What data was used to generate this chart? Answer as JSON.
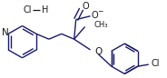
{
  "bg_color": "#ffffff",
  "line_color": "#1a1a6a",
  "text_color": "#1a1a1a",
  "line_width": 1.0,
  "figsize": [
    1.84,
    0.86
  ],
  "dpi": 100,
  "xlim": [
    0,
    184
  ],
  "ylim": [
    0,
    86
  ]
}
